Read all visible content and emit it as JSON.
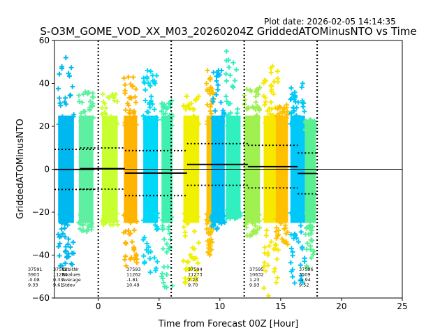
{
  "plot_date": "Plot date: 2026-02-05 14:14:35",
  "chart_data": {
    "type": "scatter",
    "title": "S-O3M_GOME_VOD_XX_M03_20260204Z GriddedATOMinusNTO vs Time",
    "xlabel": "Time from Forecast 00Z [Hour]",
    "ylabel": "GriddedATOMinusNTO",
    "xlim": [
      -3.6,
      25
    ],
    "ylim": [
      -60,
      60
    ],
    "xticks": [
      0,
      5,
      10,
      15,
      20,
      25
    ],
    "yticks": [
      -60,
      -40,
      -20,
      0,
      20,
      40,
      60
    ],
    "grid": false,
    "orbit_boundaries": [
      0,
      6,
      12,
      18
    ],
    "stats_header": [
      "OrbitNr",
      "Nvalues",
      "Average",
      "Stdev"
    ],
    "orbits": [
      {
        "orbit": "37591",
        "nvalues": "5903",
        "average": -0.08,
        "stdev": 9.33,
        "start": -3.6,
        "end": -0.3
      },
      {
        "orbit": "37592",
        "nvalues": "11284",
        "average": 0.33,
        "stdev": 9.61,
        "start": -1.5,
        "end": 2.2
      },
      {
        "orbit": "37593",
        "nvalues": "11262",
        "average": -1.81,
        "stdev": 10.49,
        "start": 2.2,
        "end": 7.3
      },
      {
        "orbit": "37594",
        "nvalues": "11273",
        "average": 2.23,
        "stdev": 9.7,
        "start": 7.3,
        "end": 12.3
      },
      {
        "orbit": "37595",
        "nvalues": "10632",
        "average": 1.23,
        "stdev": 9.93,
        "start": 12.3,
        "end": 16.4
      },
      {
        "orbit": "37596",
        "nvalues": "3509",
        "average": -1.94,
        "stdev": 9.52,
        "start": 16.4,
        "end": 18.0
      }
    ],
    "strips": [
      {
        "x0": -3.3,
        "x1": -2.0,
        "ymin": -45,
        "ymax": 52,
        "color": "#00b8f0"
      },
      {
        "x0": -1.6,
        "x1": -0.4,
        "ymin": -29,
        "ymax": 36,
        "color": "#5ef0a0"
      },
      {
        "x0": 0.3,
        "x1": 1.6,
        "ymin": -26,
        "ymax": 35,
        "color": "#c8ff30"
      },
      {
        "x0": 2.1,
        "x1": 3.2,
        "ymin": -45,
        "ymax": 43,
        "color": "#ffb400"
      },
      {
        "x0": 3.7,
        "x1": 4.9,
        "ymin": -48,
        "ymax": 46,
        "color": "#00d8f8"
      },
      {
        "x0": 5.2,
        "x1": 6.1,
        "ymin": -55,
        "ymax": 32,
        "color": "#40f0b0"
      },
      {
        "x0": 7.0,
        "x1": 8.3,
        "ymin": -53,
        "ymax": 34,
        "color": "#f0f000"
      },
      {
        "x0": 8.9,
        "x1": 9.5,
        "ymin": -40,
        "ymax": 46,
        "color": "#ffc000"
      },
      {
        "x0": 9.3,
        "x1": 10.4,
        "ymin": -28,
        "ymax": 46,
        "color": "#00c0f8"
      },
      {
        "x0": 10.5,
        "x1": 11.7,
        "ymin": -23,
        "ymax": 55,
        "color": "#30f0c0"
      },
      {
        "x0": 12.0,
        "x1": 13.3,
        "ymin": -31,
        "ymax": 38,
        "color": "#a0f050"
      },
      {
        "x0": 13.6,
        "x1": 14.8,
        "ymin": -59,
        "ymax": 48,
        "color": "#f8e800"
      },
      {
        "x0": 14.6,
        "x1": 15.6,
        "ymin": -35,
        "ymax": 30,
        "color": "#ffc000"
      },
      {
        "x0": 15.8,
        "x1": 17.0,
        "ymin": -53,
        "ymax": 40,
        "color": "#00c8f8"
      },
      {
        "x0": 17.0,
        "x1": 17.9,
        "ymin": -46,
        "ymax": 23,
        "color": "#58f090"
      }
    ]
  }
}
